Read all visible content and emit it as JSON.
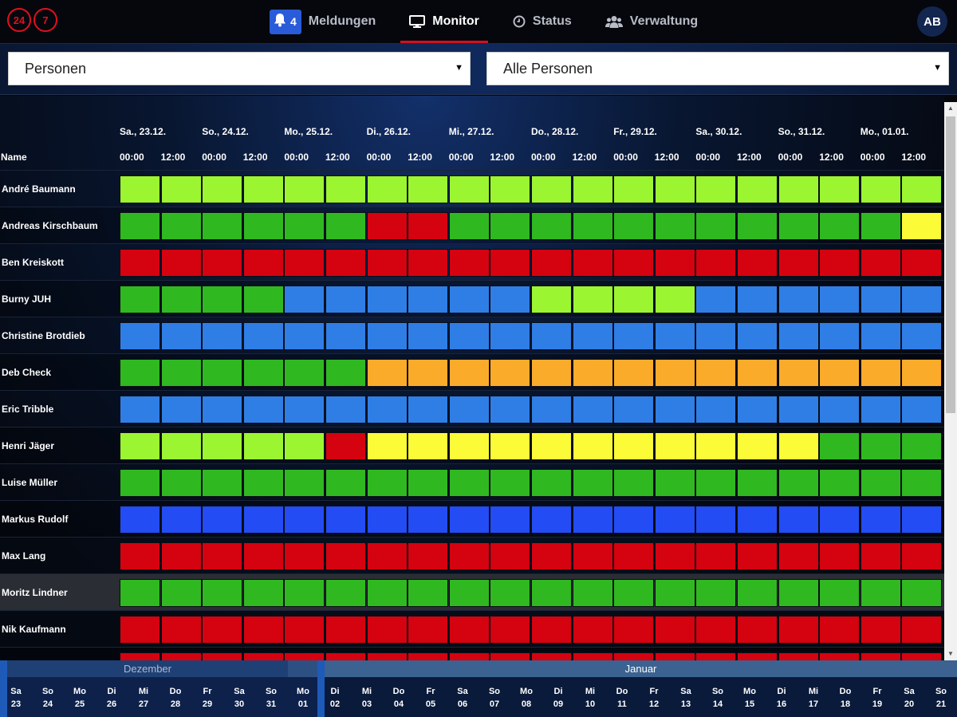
{
  "logo": {
    "left": "24",
    "right": "7"
  },
  "nav": [
    {
      "label": "Meldungen",
      "icon": "bell-icon",
      "badge": "4",
      "active": false
    },
    {
      "label": "Monitor",
      "icon": "monitor-icon",
      "active": true
    },
    {
      "label": "Status",
      "icon": "clock-icon",
      "active": false
    },
    {
      "label": "Verwaltung",
      "icon": "users-icon",
      "active": false
    }
  ],
  "user": {
    "initials": "AB"
  },
  "filters": {
    "type": "Personen",
    "scope": "Alle Personen"
  },
  "grid": {
    "name_header": "Name",
    "dates": [
      "Sa., 23.12.",
      "So., 24.12.",
      "Mo., 25.12.",
      "Di., 26.12.",
      "Mi., 27.12.",
      "Do., 28.12.",
      "Fr., 29.12.",
      "Sa., 30.12.",
      "So., 31.12.",
      "Mo., 01.01."
    ],
    "times": [
      "00:00",
      "12:00"
    ]
  },
  "colors": {
    "L": "#9cf531",
    "G": "#30b821",
    "R": "#d50210",
    "B": "#2f7ee6",
    "D": "#234cf4",
    "O": "#fbab2a",
    "Y": "#fbfb38"
  },
  "people": [
    {
      "name": "André Baumann",
      "pattern": "LLLLLLLLLLLLLLLLLLLL"
    },
    {
      "name": "Andreas Kirschbaum",
      "pattern": "GGGGGGRRGGGGGGGGGGGY"
    },
    {
      "name": "Ben Kreiskott",
      "pattern": "RRRRRRRRRRRRRRRRRRRR"
    },
    {
      "name": "Burny JUH",
      "pattern": "GGGGBBBBBBLLLLBBBBBB"
    },
    {
      "name": "Christine Brotdieb",
      "pattern": "BBBBBBBBBBBBBBBBBBBB"
    },
    {
      "name": "Deb Check",
      "pattern": "GGGGGGOOOOOOOOOOOOOO"
    },
    {
      "name": "Eric Tribble",
      "pattern": "BBBBBBBBBBBBBBBBBBBB"
    },
    {
      "name": "Henri Jäger",
      "pattern": "LLLLLRYYYYYYYYYYYGGG"
    },
    {
      "name": "Luise Müller",
      "pattern": "GGGGGGGGGGGGGGGGGGGG"
    },
    {
      "name": "Markus Rudolf",
      "pattern": "DDDDDDDDDDDDDDDDDDDD"
    },
    {
      "name": "Max Lang",
      "pattern": "RRRRRRRRRRRRRRRRRRRR"
    },
    {
      "name": "Moritz Lindner",
      "pattern": "GGGGGGGGGGGGGGGGGGGG",
      "highlight": true
    },
    {
      "name": "Nik Kaufmann",
      "pattern": "RRRRRRRRRRRRRRRRRRRR"
    }
  ],
  "timeline": {
    "months": [
      "Dezember",
      "Januar"
    ],
    "days": [
      {
        "wd": "Sa",
        "d": "23"
      },
      {
        "wd": "So",
        "d": "24"
      },
      {
        "wd": "Mo",
        "d": "25"
      },
      {
        "wd": "Di",
        "d": "26"
      },
      {
        "wd": "Mi",
        "d": "27"
      },
      {
        "wd": "Do",
        "d": "28"
      },
      {
        "wd": "Fr",
        "d": "29"
      },
      {
        "wd": "Sa",
        "d": "30"
      },
      {
        "wd": "So",
        "d": "31"
      },
      {
        "wd": "Mo",
        "d": "01"
      },
      {
        "wd": "Di",
        "d": "02"
      },
      {
        "wd": "Mi",
        "d": "03"
      },
      {
        "wd": "Do",
        "d": "04"
      },
      {
        "wd": "Fr",
        "d": "05"
      },
      {
        "wd": "Sa",
        "d": "06"
      },
      {
        "wd": "So",
        "d": "07"
      },
      {
        "wd": "Mo",
        "d": "08"
      },
      {
        "wd": "Di",
        "d": "09"
      },
      {
        "wd": "Mi",
        "d": "10"
      },
      {
        "wd": "Do",
        "d": "11"
      },
      {
        "wd": "Fr",
        "d": "12"
      },
      {
        "wd": "Sa",
        "d": "13"
      },
      {
        "wd": "So",
        "d": "14"
      },
      {
        "wd": "Mo",
        "d": "15"
      },
      {
        "wd": "Di",
        "d": "16"
      },
      {
        "wd": "Mi",
        "d": "17"
      },
      {
        "wd": "Do",
        "d": "18"
      },
      {
        "wd": "Fr",
        "d": "19"
      },
      {
        "wd": "Sa",
        "d": "20"
      },
      {
        "wd": "So",
        "d": "21"
      }
    ]
  }
}
